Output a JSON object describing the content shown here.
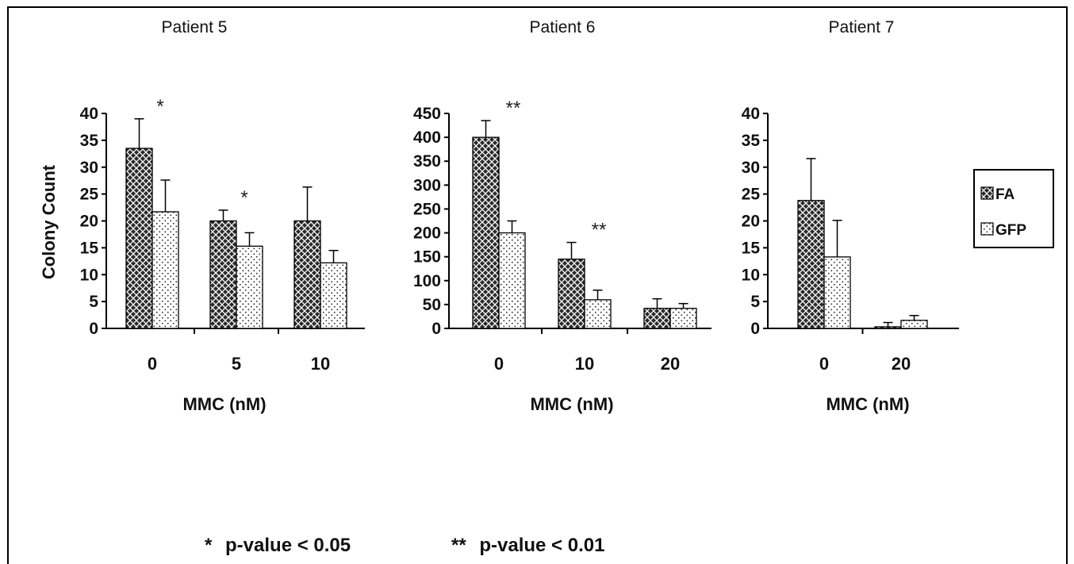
{
  "chart_data": [
    {
      "type": "bar",
      "title": "Patient 5",
      "categories": [
        "0",
        "5",
        "10"
      ],
      "series": [
        {
          "name": "FA",
          "values": [
            33.5,
            20,
            20
          ],
          "errors": [
            5.5,
            2,
            6.3
          ]
        },
        {
          "name": "GFP",
          "values": [
            21.7,
            15.3,
            12.2
          ],
          "errors": [
            5.9,
            2.5,
            2.3
          ]
        }
      ],
      "yticks": [
        "0",
        "5",
        "10",
        "15",
        "20",
        "25",
        "30",
        "35",
        "40"
      ],
      "ylim": [
        0,
        40
      ],
      "ylabel": "Colony Count",
      "xlabel": "MMC (nM)",
      "significance": [
        {
          "category_index": 0,
          "mark": "*"
        },
        {
          "category_index": 1,
          "mark": "*"
        }
      ]
    },
    {
      "type": "bar",
      "title": "Patient 6",
      "categories": [
        "0",
        "10",
        "20"
      ],
      "series": [
        {
          "name": "FA",
          "values": [
            400,
            145,
            42
          ],
          "errors": [
            35,
            35,
            20
          ]
        },
        {
          "name": "GFP",
          "values": [
            200,
            60,
            42
          ],
          "errors": [
            25,
            20,
            10
          ]
        }
      ],
      "yticks": [
        "0",
        "50",
        "100",
        "150",
        "200",
        "250",
        "300",
        "350",
        "400",
        "450"
      ],
      "ylim": [
        0,
        450
      ],
      "ylabel": "",
      "xlabel": "MMC (nM)",
      "significance": [
        {
          "category_index": 0,
          "mark": "**"
        },
        {
          "category_index": 1,
          "mark": "**"
        }
      ]
    },
    {
      "type": "bar",
      "title": "Patient 7",
      "categories": [
        "0",
        "20"
      ],
      "series": [
        {
          "name": "FA",
          "values": [
            23.8,
            0.3
          ],
          "errors": [
            7.8,
            0.8
          ]
        },
        {
          "name": "GFP",
          "values": [
            13.3,
            1.5
          ],
          "errors": [
            6.8,
            0.9
          ]
        }
      ],
      "yticks": [
        "0",
        "5",
        "10",
        "15",
        "20",
        "25",
        "30",
        "35",
        "40"
      ],
      "ylim": [
        0,
        40
      ],
      "ylabel": "",
      "xlabel": "MMC (nM)",
      "significance": []
    }
  ],
  "legend": {
    "items": [
      {
        "label": "FA",
        "pattern": "crosshatch"
      },
      {
        "label": "GFP",
        "pattern": "dots"
      }
    ],
    "placement": "right"
  },
  "footnotes": [
    {
      "stars": "*",
      "text": "p-value < 0.05"
    },
    {
      "stars": "**",
      "text": "p-value < 0.01"
    }
  ],
  "colors": {
    "fa_fill": "#2b2b2b",
    "gfp_fill": "#ffffff",
    "axis": "#000000",
    "frame": "#000000"
  }
}
